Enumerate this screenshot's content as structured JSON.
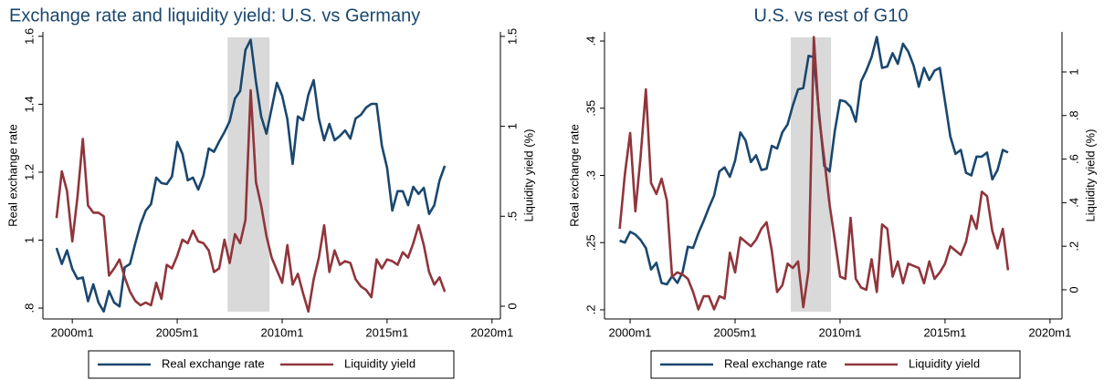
{
  "chart_data": [
    {
      "type": "line",
      "title": "Exchange rate and liquidity yield:  U.S. vs Germany",
      "ylabel": "Real exchange rate",
      "y2label": "Liquidity yield (%)",
      "shade": [
        2007.4,
        2009.4
      ],
      "xlim": [
        1998.6,
        2020.4
      ],
      "xticks": [
        {
          "value": 2000,
          "label": "2000m1"
        },
        {
          "value": 2005,
          "label": "2005m1"
        },
        {
          "value": 2010,
          "label": "2010m1"
        },
        {
          "value": 2015,
          "label": "2015m1"
        },
        {
          "value": 2020,
          "label": "2020m1"
        }
      ],
      "ylim": [
        0.768,
        1.613
      ],
      "yticks": [
        {
          "value": 0.8,
          "label": ".8"
        },
        1,
        1.2,
        1.4,
        1.6
      ],
      "y2lim": [
        -0.071,
        1.525
      ],
      "y2ticks": [
        0,
        {
          "value": 0.5,
          "label": ".5"
        },
        1,
        1.5
      ],
      "x": [
        1999.25,
        1999.5,
        1999.75,
        2000,
        2000.25,
        2000.5,
        2000.75,
        2001,
        2001.25,
        2001.5,
        2001.75,
        2002,
        2002.25,
        2002.5,
        2002.75,
        2003,
        2003.25,
        2003.5,
        2003.75,
        2004,
        2004.25,
        2004.5,
        2004.75,
        2005,
        2005.25,
        2005.5,
        2005.75,
        2006,
        2006.25,
        2006.5,
        2006.75,
        2007,
        2007.25,
        2007.5,
        2007.75,
        2008,
        2008.25,
        2008.5,
        2008.75,
        2009,
        2009.25,
        2009.5,
        2009.75,
        2010,
        2010.25,
        2010.5,
        2010.75,
        2011,
        2011.25,
        2011.5,
        2011.75,
        2012,
        2012.25,
        2012.5,
        2012.75,
        2013,
        2013.25,
        2013.5,
        2013.75,
        2014,
        2014.25,
        2014.5,
        2014.75,
        2015,
        2015.25,
        2015.5,
        2015.75,
        2016,
        2016.25,
        2016.5,
        2016.75,
        2017,
        2017.25,
        2017.5,
        2017.75
      ],
      "series": [
        {
          "name": "Real exchange rate",
          "color": "#1a476f",
          "values": [
            0.977,
            0.93,
            0.97,
            0.915,
            0.886,
            0.89,
            0.82,
            0.87,
            0.816,
            0.79,
            0.85,
            0.816,
            0.805,
            0.92,
            0.93,
            0.99,
            1.047,
            1.087,
            1.106,
            1.184,
            1.168,
            1.165,
            1.187,
            1.289,
            1.254,
            1.176,
            1.184,
            1.149,
            1.19,
            1.27,
            1.26,
            1.29,
            1.318,
            1.35,
            1.417,
            1.439,
            1.56,
            1.59,
            1.466,
            1.364,
            1.313,
            1.388,
            1.463,
            1.425,
            1.356,
            1.224,
            1.364,
            1.353,
            1.428,
            1.471,
            1.358,
            1.294,
            1.342,
            1.294,
            1.307,
            1.323,
            1.299,
            1.358,
            1.369,
            1.39,
            1.401,
            1.401,
            1.278,
            1.213,
            1.087,
            1.144,
            1.144,
            1.103,
            1.157,
            1.136,
            1.154,
            1.077,
            1.103,
            1.176,
            1.219
          ]
        },
        {
          "name": "Liquidity yield",
          "color": "#90353b",
          "axis": "y2",
          "values": [
            0.49,
            0.75,
            0.64,
            0.36,
            0.61,
            0.93,
            0.56,
            0.52,
            0.52,
            0.5,
            0.17,
            0.21,
            0.26,
            0.16,
            0.08,
            0.03,
            0.005,
            0.02,
            0.005,
            0.13,
            0.04,
            0.23,
            0.21,
            0.28,
            0.37,
            0.35,
            0.42,
            0.36,
            0.35,
            0.31,
            0.19,
            0.21,
            0.37,
            0.24,
            0.4,
            0.35,
            0.48,
            1.2,
            0.69,
            0.56,
            0.39,
            0.27,
            0.2,
            0.13,
            0.34,
            0.12,
            0.18,
            0.07,
            -0.03,
            0.15,
            0.27,
            0.45,
            0.19,
            0.31,
            0.23,
            0.25,
            0.24,
            0.15,
            0.11,
            0.09,
            0.05,
            0.26,
            0.21,
            0.26,
            0.25,
            0.23,
            0.3,
            0.27,
            0.35,
            0.45,
            0.34,
            0.19,
            0.12,
            0.16,
            0.08
          ]
        }
      ]
    },
    {
      "type": "line",
      "title": "U.S. vs rest of G10",
      "ylabel": "Real exchange rate",
      "y2label": "Liquidity yield (%)",
      "shade": [
        2007.65,
        2009.57
      ],
      "xlim": [
        1998.78,
        2020.57
      ],
      "xticks": [
        {
          "value": 2000,
          "label": "2000m1"
        },
        {
          "value": 2005,
          "label": "2005m1"
        },
        {
          "value": 2010,
          "label": "2010m1"
        },
        {
          "value": 2015,
          "label": "2015m1"
        },
        {
          "value": 2020,
          "label": "2020m1"
        }
      ],
      "ylim": [
        0.1932,
        0.4068
      ],
      "yticks": [
        {
          "value": 0.2,
          "label": ".2"
        },
        {
          "value": 0.25,
          "label": ".25"
        },
        {
          "value": 0.3,
          "label": ".3"
        },
        {
          "value": 0.35,
          "label": ".35"
        },
        {
          "value": 0.4,
          "label": ".4"
        }
      ],
      "y2lim": [
        -0.134,
        1.184
      ],
      "y2ticks": [
        0,
        {
          "value": 0.2,
          "label": ".2"
        },
        {
          "value": 0.4,
          "label": ".4"
        },
        {
          "value": 0.6,
          "label": ".6"
        },
        {
          "value": 0.8,
          "label": ".8"
        },
        1
      ],
      "x": [
        1999.5,
        1999.75,
        2000,
        2000.25,
        2000.5,
        2000.75,
        2001,
        2001.25,
        2001.5,
        2001.75,
        2002,
        2002.25,
        2002.5,
        2002.75,
        2003,
        2003.25,
        2003.5,
        2003.75,
        2004,
        2004.25,
        2004.5,
        2004.75,
        2005,
        2005.25,
        2005.5,
        2005.75,
        2006,
        2006.25,
        2006.5,
        2006.75,
        2007,
        2007.25,
        2007.5,
        2007.75,
        2008,
        2008.25,
        2008.5,
        2008.75,
        2009,
        2009.25,
        2009.5,
        2009.75,
        2010,
        2010.25,
        2010.5,
        2010.75,
        2011,
        2011.25,
        2011.5,
        2011.75,
        2012,
        2012.25,
        2012.5,
        2012.75,
        2013,
        2013.25,
        2013.5,
        2013.75,
        2014,
        2014.25,
        2014.5,
        2014.75,
        2015,
        2015.25,
        2015.5,
        2015.75,
        2016,
        2016.25,
        2016.5,
        2016.75,
        2017,
        2017.25,
        2017.5,
        2017.75,
        2018
      ],
      "series": [
        {
          "name": "Real exchange rate",
          "color": "#1a476f",
          "values": [
            0.2515,
            0.25,
            0.258,
            0.256,
            0.252,
            0.246,
            0.23,
            0.235,
            0.22,
            0.219,
            0.225,
            0.22,
            0.228,
            0.247,
            0.246,
            0.257,
            0.266,
            0.276,
            0.285,
            0.303,
            0.306,
            0.299,
            0.311,
            0.332,
            0.326,
            0.31,
            0.315,
            0.304,
            0.305,
            0.322,
            0.32,
            0.332,
            0.338,
            0.352,
            0.364,
            0.365,
            0.389,
            0.388,
            0.346,
            0.307,
            0.303,
            0.333,
            0.356,
            0.355,
            0.351,
            0.34,
            0.37,
            0.378,
            0.388,
            0.403,
            0.38,
            0.381,
            0.391,
            0.383,
            0.398,
            0.392,
            0.382,
            0.366,
            0.38,
            0.371,
            0.378,
            0.38,
            0.355,
            0.329,
            0.316,
            0.319,
            0.302,
            0.3,
            0.314,
            0.314,
            0.317,
            0.297,
            0.304,
            0.319,
            0.317
          ]
        },
        {
          "name": "Liquidity yield",
          "color": "#90353b",
          "axis": "y2",
          "values": [
            0.28,
            0.53,
            0.72,
            0.36,
            0.61,
            0.92,
            0.49,
            0.44,
            0.51,
            0.41,
            0.06,
            0.08,
            0.07,
            0.05,
            -0.01,
            -0.09,
            -0.03,
            -0.03,
            -0.09,
            -0.03,
            -0.04,
            0.17,
            0.08,
            0.24,
            0.22,
            0.2,
            0.23,
            0.28,
            0.31,
            0.18,
            -0.01,
            0.02,
            0.12,
            0.1,
            0.13,
            -0.08,
            0.09,
            1.16,
            0.79,
            0.6,
            0.39,
            0.23,
            0.06,
            0.05,
            0.33,
            0.05,
            0.01,
            0.0,
            0.14,
            -0.01,
            0.3,
            0.28,
            0.06,
            0.13,
            0.03,
            0.12,
            0.11,
            0.1,
            0.03,
            0.13,
            0.05,
            0.08,
            0.12,
            0.2,
            0.18,
            0.16,
            0.22,
            0.34,
            0.28,
            0.45,
            0.43,
            0.27,
            0.19,
            0.28,
            0.09
          ]
        }
      ]
    }
  ]
}
